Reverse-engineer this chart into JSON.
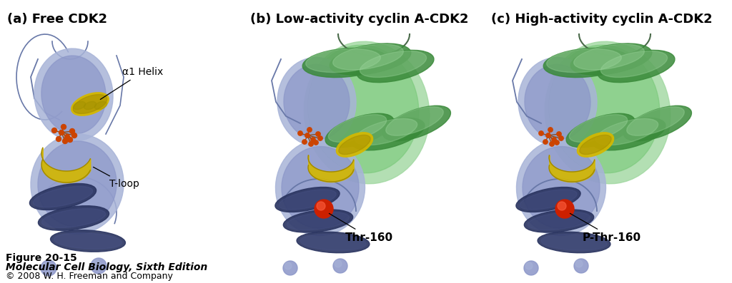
{
  "title_a": "(a) Free CDK2",
  "title_b": "(b) Low-activity cyclin A-CDK2",
  "title_c": "(c) High-activity cyclin A-CDK2",
  "label_alpha1": "α1 Helix",
  "label_tloop": "T-loop",
  "label_thr160": "Thr-160",
  "label_pthr160": "P-Thr-160",
  "fig_label": "Figure 20-15",
  "fig_book": "Molecular Cell Biology, Sixth Edition",
  "fig_copy": "© 2008 W. H. Freeman and Company",
  "bg_color": "#ffffff",
  "blue_body": "#8b96c8",
  "blue_dark": "#4a5488",
  "blue_light": "#a8b4d8",
  "green_cyclin": "#78c878",
  "green_dark": "#3a8a3a",
  "green_light": "#a0d8a0",
  "yellow_helix": "#d4b800",
  "yellow_dark": "#a08800",
  "dark_barrel": "#2a3460",
  "red_sphere": "#cc2000",
  "orange_atp": "#cc4400",
  "title_fontsize": 13,
  "label_fontsize": 10,
  "footer_fontsize": 9,
  "annot_fontsize": 11
}
